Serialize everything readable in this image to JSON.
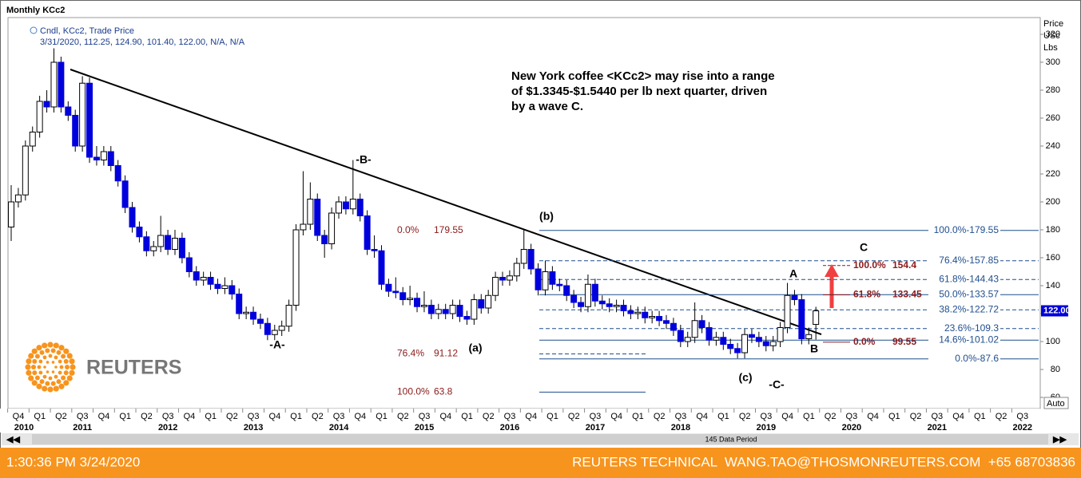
{
  "chart_data": {
    "type": "candlestick",
    "title": "Monthly KCc2",
    "legend": [
      "Cndl, KCc2, Trade Price",
      "3/31/2020, 112.25, 124.90, 101.40, 122.00, N/A, N/A"
    ],
    "axis_label": [
      "Price",
      "USc",
      "Lbs"
    ],
    "annotation": [
      "New York coffee <KCc2> may rise into a range",
      "of $1.3345-$1.5440 per lb next quarter, driven",
      "by a wave C."
    ],
    "up_color": "#ffffff",
    "down_color": "#0000dd",
    "ylim": [
      52,
      332
    ],
    "yticks": [
      60,
      80,
      100,
      120,
      140,
      160,
      180,
      200,
      220,
      240,
      260,
      280,
      300,
      320
    ],
    "last_price": {
      "value": 122,
      "label": "122.00"
    },
    "quarters": [
      "Q4",
      "Q1",
      "Q2",
      "Q3",
      "Q4",
      "Q1",
      "Q2",
      "Q3",
      "Q4",
      "Q1",
      "Q2",
      "Q3",
      "Q4",
      "Q1",
      "Q2",
      "Q3",
      "Q4",
      "Q1",
      "Q2",
      "Q3",
      "Q4",
      "Q1",
      "Q2",
      "Q3",
      "Q4",
      "Q1",
      "Q2",
      "Q3",
      "Q4",
      "Q1",
      "Q2",
      "Q3",
      "Q4",
      "Q1",
      "Q2",
      "Q3",
      "Q4",
      "Q1",
      "Q2",
      "Q3",
      "Q4",
      "Q1",
      "Q2",
      "Q3",
      "Q4",
      "Q1",
      "Q2",
      "Q3"
    ],
    "years": [
      "2010",
      "2011",
      "2012",
      "2013",
      "2014",
      "2015",
      "2016",
      "2017",
      "2018",
      "2019",
      "2020",
      "2021",
      "2022"
    ],
    "candles": [
      [
        182,
        212,
        172,
        200
      ],
      [
        200,
        210,
        196,
        205
      ],
      [
        205,
        244,
        201,
        240
      ],
      [
        240,
        254,
        236,
        250
      ],
      [
        250,
        276,
        246,
        272
      ],
      [
        272,
        280,
        264,
        268
      ],
      [
        268,
        310,
        264,
        300
      ],
      [
        300,
        304,
        264,
        268
      ],
      [
        268,
        272,
        258,
        262
      ],
      [
        262,
        266,
        236,
        240
      ],
      [
        240,
        290,
        236,
        285
      ],
      [
        285,
        289,
        228,
        232
      ],
      [
        232,
        240,
        226,
        230
      ],
      [
        230,
        240,
        226,
        236
      ],
      [
        236,
        240,
        222,
        226
      ],
      [
        226,
        230,
        211,
        215
      ],
      [
        215,
        219,
        192,
        196
      ],
      [
        196,
        200,
        178,
        182
      ],
      [
        182,
        186,
        171,
        175
      ],
      [
        175,
        179,
        161,
        165
      ],
      [
        165,
        172,
        161,
        168
      ],
      [
        168,
        190,
        164,
        176
      ],
      [
        176,
        180,
        162,
        166
      ],
      [
        166,
        180,
        162,
        174
      ],
      [
        174,
        178,
        156,
        160
      ],
      [
        160,
        164,
        146,
        150
      ],
      [
        150,
        154,
        140,
        144
      ],
      [
        144,
        150,
        140,
        146
      ],
      [
        146,
        150,
        137,
        141
      ],
      [
        141,
        145,
        134,
        138
      ],
      [
        138,
        146,
        134,
        140
      ],
      [
        140,
        144,
        130,
        134
      ],
      [
        134,
        138,
        116,
        120
      ],
      [
        120,
        125,
        116,
        121
      ],
      [
        121,
        125,
        112,
        116
      ],
      [
        116,
        120,
        109,
        113
      ],
      [
        113,
        117,
        101,
        105
      ],
      [
        105,
        112,
        101,
        108
      ],
      [
        108,
        115,
        104,
        111
      ],
      [
        111,
        130,
        107,
        126
      ],
      [
        126,
        184,
        122,
        180
      ],
      [
        180,
        222,
        176,
        184
      ],
      [
        184,
        214,
        180,
        202
      ],
      [
        202,
        206,
        172,
        176
      ],
      [
        176,
        180,
        160,
        170
      ],
      [
        170,
        196,
        166,
        192
      ],
      [
        192,
        204,
        188,
        200
      ],
      [
        200,
        204,
        191,
        195
      ],
      [
        195,
        230,
        191,
        202
      ],
      [
        202,
        206,
        186,
        190
      ],
      [
        190,
        194,
        162,
        166
      ],
      [
        166,
        176,
        160,
        165
      ],
      [
        165,
        169,
        137,
        141
      ],
      [
        141,
        145,
        132,
        136
      ],
      [
        136,
        146,
        131,
        135
      ],
      [
        135,
        139,
        126,
        130
      ],
      [
        130,
        140,
        126,
        131
      ],
      [
        131,
        135,
        121,
        125
      ],
      [
        125,
        136,
        121,
        126
      ],
      [
        126,
        130,
        116,
        120
      ],
      [
        120,
        127,
        116,
        123
      ],
      [
        123,
        127,
        116,
        120
      ],
      [
        120,
        130,
        116,
        126
      ],
      [
        126,
        130,
        114,
        118
      ],
      [
        118,
        122,
        112,
        116
      ],
      [
        116,
        134,
        112,
        130
      ],
      [
        130,
        134,
        120,
        124
      ],
      [
        124,
        137,
        120,
        133
      ],
      [
        133,
        150,
        129,
        146
      ],
      [
        146,
        150,
        140,
        144
      ],
      [
        144,
        151,
        140,
        147
      ],
      [
        147,
        160,
        143,
        156
      ],
      [
        156,
        180,
        152,
        166
      ],
      [
        166,
        170,
        148,
        152
      ],
      [
        152,
        156,
        133,
        137
      ],
      [
        137,
        158,
        133,
        150
      ],
      [
        150,
        154,
        137,
        141
      ],
      [
        141,
        145,
        136,
        140
      ],
      [
        140,
        144,
        129,
        133
      ],
      [
        133,
        137,
        124,
        128
      ],
      [
        128,
        132,
        121,
        125
      ],
      [
        125,
        148,
        121,
        141
      ],
      [
        141,
        145,
        125,
        129
      ],
      [
        129,
        133,
        123,
        127
      ],
      [
        127,
        131,
        121,
        125
      ],
      [
        125,
        130,
        121,
        126
      ],
      [
        126,
        130,
        118,
        122
      ],
      [
        122,
        126,
        116,
        120
      ],
      [
        120,
        125,
        116,
        121
      ],
      [
        121,
        125,
        113,
        117
      ],
      [
        117,
        122,
        113,
        118
      ],
      [
        118,
        122,
        111,
        115
      ],
      [
        115,
        119,
        109,
        113
      ],
      [
        113,
        117,
        104,
        108
      ],
      [
        108,
        112,
        96,
        100
      ],
      [
        100,
        107,
        96,
        103
      ],
      [
        103,
        128,
        99,
        115
      ],
      [
        115,
        119,
        106,
        110
      ],
      [
        110,
        114,
        97,
        101
      ],
      [
        101,
        107,
        97,
        103
      ],
      [
        103,
        107,
        94,
        98
      ],
      [
        98,
        102,
        91,
        95
      ],
      [
        95,
        99,
        88,
        92
      ],
      [
        92,
        109,
        88,
        105
      ],
      [
        105,
        109,
        99,
        103
      ],
      [
        103,
        107,
        96,
        100
      ],
      [
        100,
        104,
        93,
        97
      ],
      [
        97,
        104,
        93,
        100
      ],
      [
        100,
        114,
        96,
        110
      ],
      [
        110,
        142,
        106,
        133
      ],
      [
        133,
        137,
        126,
        130
      ],
      [
        130,
        134,
        98,
        102
      ],
      [
        102,
        110,
        98,
        105
      ],
      [
        112.25,
        124.9,
        101.4,
        122
      ]
    ],
    "fib_levels": [
      {
        "label": "100.0%-179.55",
        "value": 179.55,
        "dashed": false
      },
      {
        "label": "76.4%-157.85",
        "value": 157.85,
        "dashed": true
      },
      {
        "label": "61.8%-144.43",
        "value": 144.43,
        "dashed": true
      },
      {
        "label": "50.0%-133.57",
        "value": 133.57,
        "dashed": false
      },
      {
        "label": "38.2%-122.72",
        "value": 122.72,
        "dashed": true
      },
      {
        "label": "23.6%-109.3",
        "value": 109.3,
        "dashed": true
      },
      {
        "label": "14.6%-101.02",
        "value": 101.02,
        "dashed": false
      },
      {
        "label": "0.0%-87.6",
        "value": 87.6,
        "dashed": false
      }
    ],
    "target_levels": [
      {
        "pct": "100.0%",
        "value": 154.4
      },
      {
        "pct": "61.8%",
        "value": 133.45
      },
      {
        "pct": "0.0%",
        "value": 99.55
      }
    ],
    "left_levels": [
      {
        "pct": "0.0%",
        "value": 179.55
      },
      {
        "pct": "76.4%",
        "value": 91.12
      },
      {
        "pct": "100.0%",
        "value": 63.8
      }
    ],
    "waves": [
      "-A-",
      "-B-",
      "(b)",
      "(a)",
      "(c)",
      "-C-",
      "A",
      "B",
      "C"
    ],
    "reuters": "REUTERS",
    "auto": "Auto",
    "data_period": "145 Data Period",
    "footer_time": "1:30:36 PM 3/24/2020",
    "footer_credit": "REUTERS TECHNICAL  WANG.TAO@THOSMONREUTERS.COM  +65 68703836"
  }
}
